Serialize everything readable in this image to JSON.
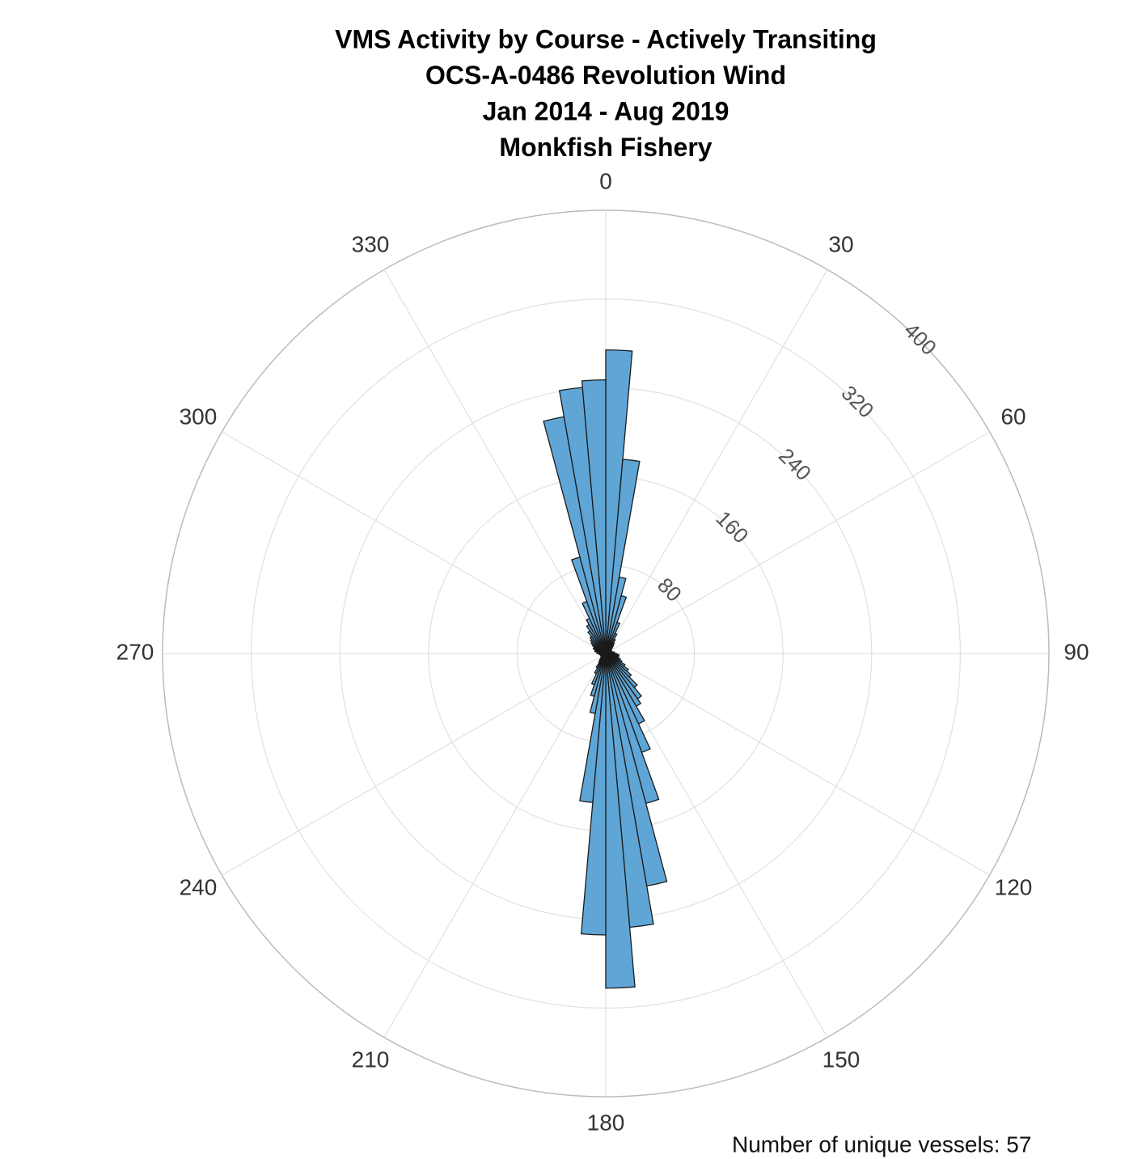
{
  "chart_data": {
    "type": "polar_histogram",
    "title": [
      "VMS Activity by Course - Actively Transiting",
      "OCS-A-0486 Revolution Wind",
      "Jan 2014 - Aug 2019",
      "Monkfish Fishery"
    ],
    "bins": [
      0,
      5,
      10,
      15,
      20,
      25,
      30,
      35,
      40,
      45,
      50,
      55,
      60,
      65,
      70,
      75,
      80,
      85,
      90,
      95,
      100,
      105,
      110,
      115,
      120,
      125,
      130,
      135,
      140,
      145,
      150,
      155,
      160,
      165,
      170,
      175,
      180,
      185,
      190,
      195,
      200,
      205,
      210,
      215,
      220,
      225,
      230,
      235,
      240,
      245,
      250,
      255,
      260,
      265,
      270,
      275,
      280,
      285,
      290,
      295,
      300,
      305,
      310,
      315,
      320,
      325,
      330,
      335,
      340,
      345,
      350,
      355,
      360
    ],
    "values": [
      274,
      176,
      70,
      54,
      30,
      20,
      15,
      12,
      10,
      8,
      6,
      6,
      5,
      5,
      6,
      6,
      8,
      8,
      10,
      12,
      10,
      12,
      14,
      16,
      20,
      25,
      30,
      40,
      50,
      55,
      70,
      95,
      140,
      213,
      248,
      302,
      254,
      135,
      55,
      40,
      30,
      20,
      15,
      10,
      8,
      6,
      5,
      5,
      4,
      4,
      5,
      5,
      6,
      6,
      8,
      8,
      10,
      10,
      12,
      12,
      14,
      16,
      18,
      20,
      25,
      30,
      35,
      50,
      90,
      217,
      241,
      247
    ],
    "color": "#5fa6d6",
    "rlim": [
      0,
      400
    ],
    "rticks": [
      80,
      160,
      240,
      320,
      400
    ],
    "thetaticks": [
      0,
      30,
      60,
      90,
      120,
      150,
      180,
      210,
      240,
      270,
      300,
      330
    ],
    "grid": true,
    "annotation": "Number of unique vessels: 57"
  }
}
